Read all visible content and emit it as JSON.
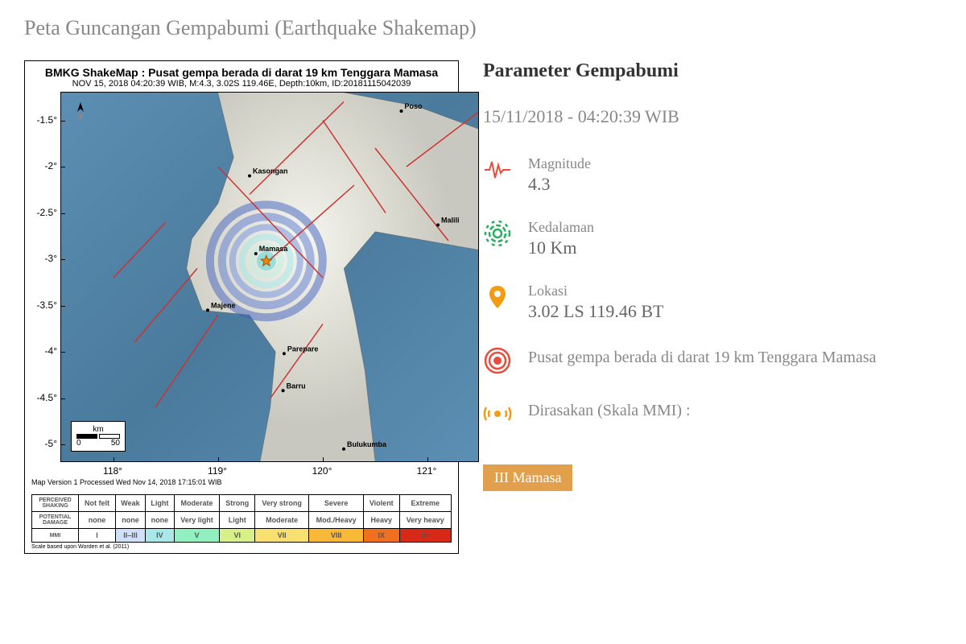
{
  "page_title": "Peta Guncangan Gempabumi (Earthquake Shakemap)",
  "map": {
    "title": "BMKG ShakeMap : Pusat gempa berada di darat 19 km Tenggara Mamasa",
    "subtitle": "NOV 15, 2018 04:20:39 WIB, M:4.3, 3.02S 119.46E, Depth:10km, ID:20181115042039",
    "footer": "Map Version 1 Processed Wed Nov 14, 2018 17:15:01 WIB",
    "xlim": [
      117.5,
      121.5
    ],
    "ylim": [
      -5.2,
      -1.2
    ],
    "xticks": [
      118,
      119,
      120,
      121
    ],
    "yticks": [
      -1.5,
      -2,
      -2.5,
      -3,
      -3.5,
      -4,
      -4.5,
      -5
    ],
    "ytick_labels": [
      "-1.5°",
      "-2°",
      "-2.5°",
      "-3°",
      "-3.5°",
      "-4°",
      "-4.5°",
      "-5°"
    ],
    "xtick_labels": [
      "118°",
      "119°",
      "120°",
      "121°"
    ],
    "ocean_color": "#5b8fb3",
    "land_color": "#e8e8e0",
    "fault_color": "#cc3333",
    "epicenter": {
      "lon": 119.46,
      "lat": -3.02
    },
    "cities": [
      {
        "name": "Poso",
        "lon": 120.75,
        "lat": -1.4
      },
      {
        "name": "Kasongan",
        "lon": 119.3,
        "lat": -2.1
      },
      {
        "name": "Mamasa",
        "lon": 119.36,
        "lat": -2.94
      },
      {
        "name": "Malili",
        "lon": 121.1,
        "lat": -2.63
      },
      {
        "name": "Majene",
        "lon": 118.9,
        "lat": -3.55
      },
      {
        "name": "Parepare",
        "lon": 119.63,
        "lat": -4.02
      },
      {
        "name": "Barru",
        "lon": 119.62,
        "lat": -4.42
      },
      {
        "name": "Bulukumba",
        "lon": 120.2,
        "lat": -5.05
      }
    ],
    "scalebar": {
      "label_top": "km",
      "label0": "0",
      "label50": "50"
    }
  },
  "intensity": {
    "row_headers": [
      "PERCEIVED SHAKING",
      "POTENTIAL DAMAGE",
      "MMI"
    ],
    "shaking": [
      "Not felt",
      "Weak",
      "Light",
      "Moderate",
      "Strong",
      "Very strong",
      "Severe",
      "Violent",
      "Extreme"
    ],
    "damage": [
      "none",
      "none",
      "none",
      "Very light",
      "Light",
      "Moderate",
      "Mod./Heavy",
      "Heavy",
      "Very heavy"
    ],
    "mmi": [
      "I",
      "II–III",
      "IV",
      "V",
      "VI",
      "VII",
      "VIII",
      "IX",
      "X+"
    ],
    "colors": [
      "#ffffff",
      "#d0e0f8",
      "#a8e8e8",
      "#90f0c0",
      "#d8f088",
      "#f8e070",
      "#f8b838",
      "#f07020",
      "#d82818"
    ],
    "scale_note": "Scale based upon Worden et al. (2011)"
  },
  "params": {
    "title": "Parameter Gempabumi",
    "datetime": "15/11/2018 - 04:20:39 WIB",
    "magnitude": {
      "label": "Magnitude",
      "value": "4.3",
      "icon_color": "#e74c3c"
    },
    "depth": {
      "label": "Kedalaman",
      "value": "10 Km",
      "icon_color": "#27ae60"
    },
    "location": {
      "label": "Lokasi",
      "value": "3.02 LS 119.46 BT",
      "icon_color": "#f39c12"
    },
    "epicenter_desc": {
      "text": "Pusat gempa berada di darat 19 km Tenggara Mamasa",
      "icon_color": "#e74c3c"
    },
    "felt": {
      "label": "Dirasakan (Skala MMI) :",
      "icon_color": "#f39c12",
      "badge": "III Mamasa",
      "badge_bg": "#e3a04c"
    }
  }
}
